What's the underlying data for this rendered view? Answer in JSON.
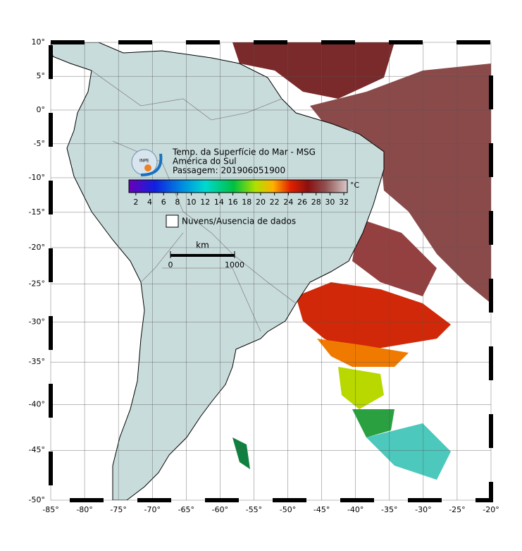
{
  "map": {
    "title_lines": [
      "Temp. da Superfície do Mar - MSG",
      "América do Sul",
      "Passagem: 201906051900"
    ],
    "logo": "INPE",
    "extent": {
      "lon": [
        -85,
        -20
      ],
      "lat": [
        -50,
        10
      ]
    },
    "lon_ticks": [
      {
        "value": -85,
        "label": "-85°"
      },
      {
        "value": -80,
        "label": "-80°"
      },
      {
        "value": -75,
        "label": "-75°"
      },
      {
        "value": -70,
        "label": "-70°"
      },
      {
        "value": -65,
        "label": "-65°"
      },
      {
        "value": -60,
        "label": "-60°"
      },
      {
        "value": -55,
        "label": "-55°"
      },
      {
        "value": -50,
        "label": "-50°"
      },
      {
        "value": -45,
        "label": "-45°"
      },
      {
        "value": -40,
        "label": "-40°"
      },
      {
        "value": -35,
        "label": "-35°"
      },
      {
        "value": -30,
        "label": "-30°"
      },
      {
        "value": -25,
        "label": "-25°"
      },
      {
        "value": -20,
        "label": "-20°"
      }
    ],
    "lat_ticks": [
      {
        "value": 10,
        "label": "10°"
      },
      {
        "value": 5,
        "label": "5°"
      },
      {
        "value": 0,
        "label": "0°"
      },
      {
        "value": -5,
        "label": "-5°"
      },
      {
        "value": -10,
        "label": "-10°"
      },
      {
        "value": -15,
        "label": "-15°"
      },
      {
        "value": -20,
        "label": "-20°"
      },
      {
        "value": -25,
        "label": "-25°"
      },
      {
        "value": -30,
        "label": "-30°"
      },
      {
        "value": -35,
        "label": "-35°"
      },
      {
        "value": -40,
        "label": "-40°"
      },
      {
        "value": -45,
        "label": "-45°"
      },
      {
        "value": -50,
        "label": "-50°"
      }
    ],
    "colorbar": {
      "range": [
        1,
        32.5
      ],
      "ticks": [
        2,
        4,
        6,
        8,
        10,
        12,
        14,
        16,
        18,
        20,
        22,
        24,
        26,
        28,
        30,
        32
      ],
      "unit": "°C"
    },
    "legend": "Nuvens/Ausencia de dados",
    "scale_bar": {
      "unit": "km",
      "labels": [
        0,
        1000
      ]
    }
  }
}
